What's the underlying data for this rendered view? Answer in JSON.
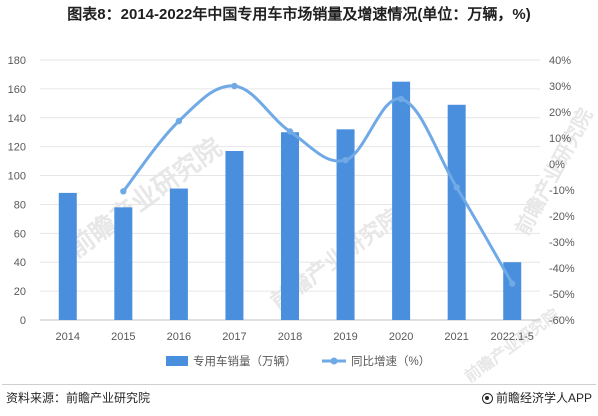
{
  "chart_data": {
    "type": "bar",
    "title": "图表8：2014-2022年中国专用车市场销量及增速情况(单位：万辆，%)",
    "categories": [
      "2014",
      "2015",
      "2016",
      "2017",
      "2018",
      "2019",
      "2020",
      "2021",
      "2022.1-5"
    ],
    "series": [
      {
        "name": "专用车销量（万辆）",
        "type": "bar",
        "axis": "left",
        "color": "#4a8fde",
        "values": [
          88,
          78,
          91,
          117,
          130,
          132,
          165,
          149,
          40
        ]
      },
      {
        "name": "同比增速（%）",
        "type": "line",
        "axis": "right",
        "color": "#6fa9e6",
        "values": [
          null,
          -10.5,
          16.5,
          30.0,
          12.5,
          1.5,
          25.0,
          -9.0,
          -46.0
        ]
      }
    ],
    "y_left": {
      "min": 0,
      "max": 180,
      "step": 20,
      "tick_labels": [
        "0",
        "20",
        "40",
        "60",
        "80",
        "100",
        "120",
        "140",
        "160",
        "180"
      ]
    },
    "y_right": {
      "min": -60,
      "max": 40,
      "step": 10,
      "tick_labels": [
        "-60%",
        "-50%",
        "-40%",
        "-30%",
        "-20%",
        "-10%",
        "0%",
        "10%",
        "20%",
        "30%",
        "40%"
      ]
    },
    "grid": "horizontal",
    "legend": "bottom-center"
  },
  "watermark": {
    "text": "前瞻产业研究院"
  },
  "footer": {
    "source": "资料来源：前瞻产业研究院",
    "brand": "前瞻经济学人APP"
  }
}
